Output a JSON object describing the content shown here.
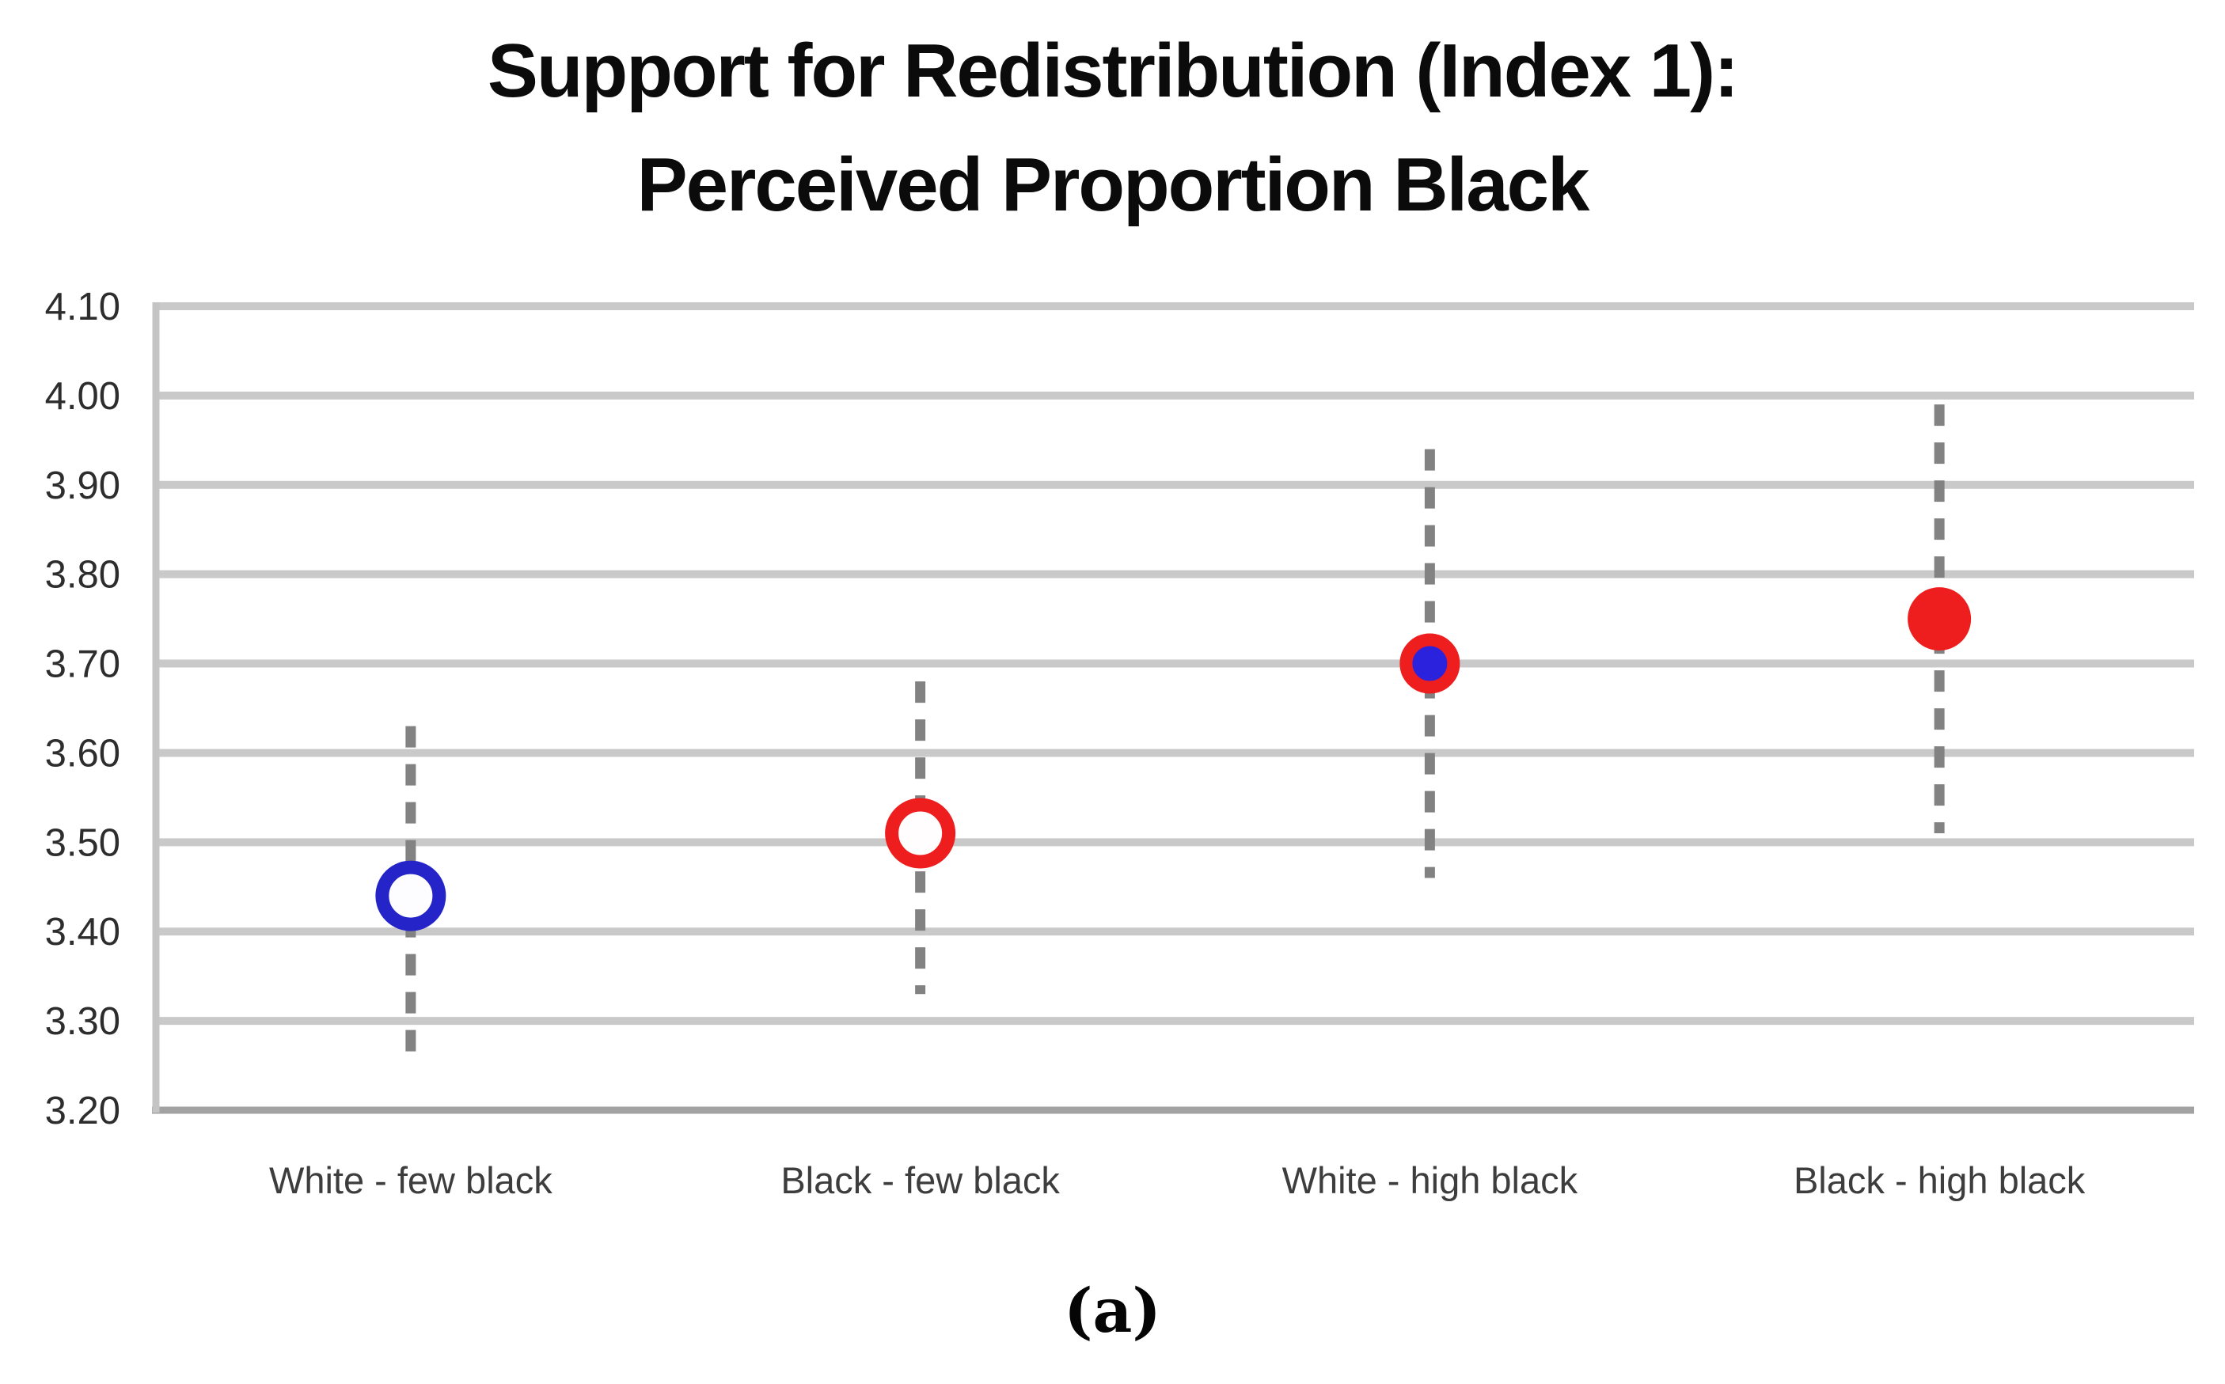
{
  "figure": {
    "title_line1": "Support for Redistribution (Index 1):",
    "title_line2": "Perceived Proportion Black",
    "caption": "(a)"
  },
  "chart_data": {
    "type": "scatter",
    "title": "Support for Redistribution (Index 1): Perceived Proportion Black",
    "subtitle_panel_label": "(a)",
    "categories": [
      "White - few black",
      "Black - few black",
      "White - high black",
      "Black - high black"
    ],
    "series": [
      {
        "name": "Mean support for redistribution with confidence interval",
        "points": [
          {
            "category": "White - few black",
            "mean": 3.44,
            "ci_low": 3.25,
            "ci_high": 3.63,
            "marker_shape": "open-circle",
            "marker_ring": "#2424C8",
            "marker_fill": "#FDFDFF"
          },
          {
            "category": "Black - few black",
            "mean": 3.51,
            "ci_low": 3.33,
            "ci_high": 3.68,
            "marker_shape": "open-circle",
            "marker_ring": "#EE1E1E",
            "marker_fill": "#FFFDFD"
          },
          {
            "category": "White - high black",
            "mean": 3.7,
            "ci_low": 3.46,
            "ci_high": 3.94,
            "marker_shape": "ringed-dot",
            "marker_ring": "#EE1E1E",
            "marker_fill": "#2B22DD"
          },
          {
            "category": "Black - high black",
            "mean": 3.75,
            "ci_low": 3.51,
            "ci_high": 3.99,
            "marker_shape": "filled-circle",
            "marker_ring": "#EE1E1E",
            "marker_fill": "#EE1E1E"
          }
        ]
      }
    ],
    "xlabel": "",
    "ylabel": "",
    "ylim": [
      3.2,
      4.1
    ],
    "ytick_labels": [
      "4.10",
      "4.00",
      "3.90",
      "3.80",
      "3.70",
      "3.60",
      "3.50",
      "3.40",
      "3.30",
      "3.20"
    ],
    "grid": "horizontal gridlines on, vertical off",
    "legend_position": "none",
    "error_bar_style": "vertical dashed gray line",
    "colors": {
      "gridline": "#C9C9C9",
      "bottom_axis": "#A2A2A2",
      "left_border": "#C4C4C4",
      "error_bar": "#828282",
      "blue": "#2424C8",
      "red": "#EE1E1E",
      "title_text": "#0B0B0B",
      "tick_text": "#2D2D2D",
      "category_text": "#3D3D3D"
    }
  }
}
